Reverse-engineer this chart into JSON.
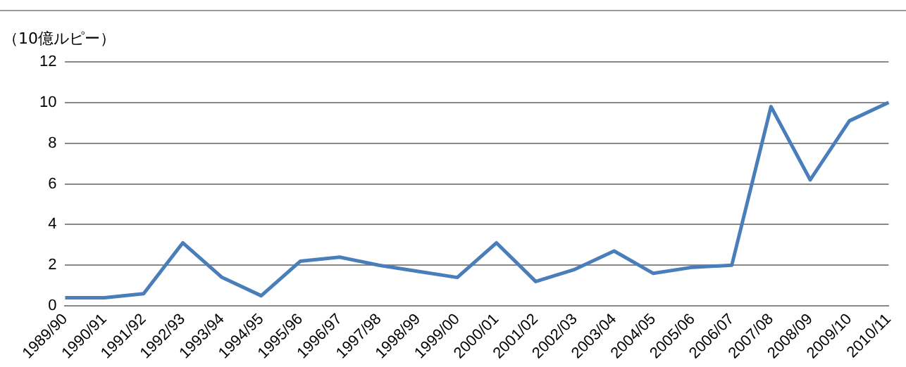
{
  "chart_data": {
    "type": "line",
    "ylabel": "（10億ルピー）",
    "categories": [
      "1989/90",
      "1990/91",
      "1991/92",
      "1992/93",
      "1993/94",
      "1994/95",
      "1995/96",
      "1996/97",
      "1997/98",
      "1998/99",
      "1999/00",
      "2000/01",
      "2001/02",
      "2002/03",
      "2003/04",
      "2004/05",
      "2005/06",
      "2006/07",
      "2007/08",
      "2008/09",
      "2009/10",
      "2010/11"
    ],
    "series": [
      {
        "color": "#4a7ebb",
        "values": [
          0.4,
          0.4,
          0.6,
          3.1,
          1.4,
          0.5,
          2.2,
          2.4,
          2.0,
          1.7,
          1.4,
          3.1,
          1.2,
          1.8,
          2.7,
          1.6,
          1.9,
          2.0,
          9.8,
          6.2,
          9.1,
          10.0
        ]
      }
    ],
    "ylim": [
      0,
      12
    ],
    "yticks": [
      0,
      2,
      4,
      6,
      8,
      10,
      12
    ],
    "grid": "y",
    "legend": false,
    "marker": "none",
    "line_style": "solid"
  }
}
